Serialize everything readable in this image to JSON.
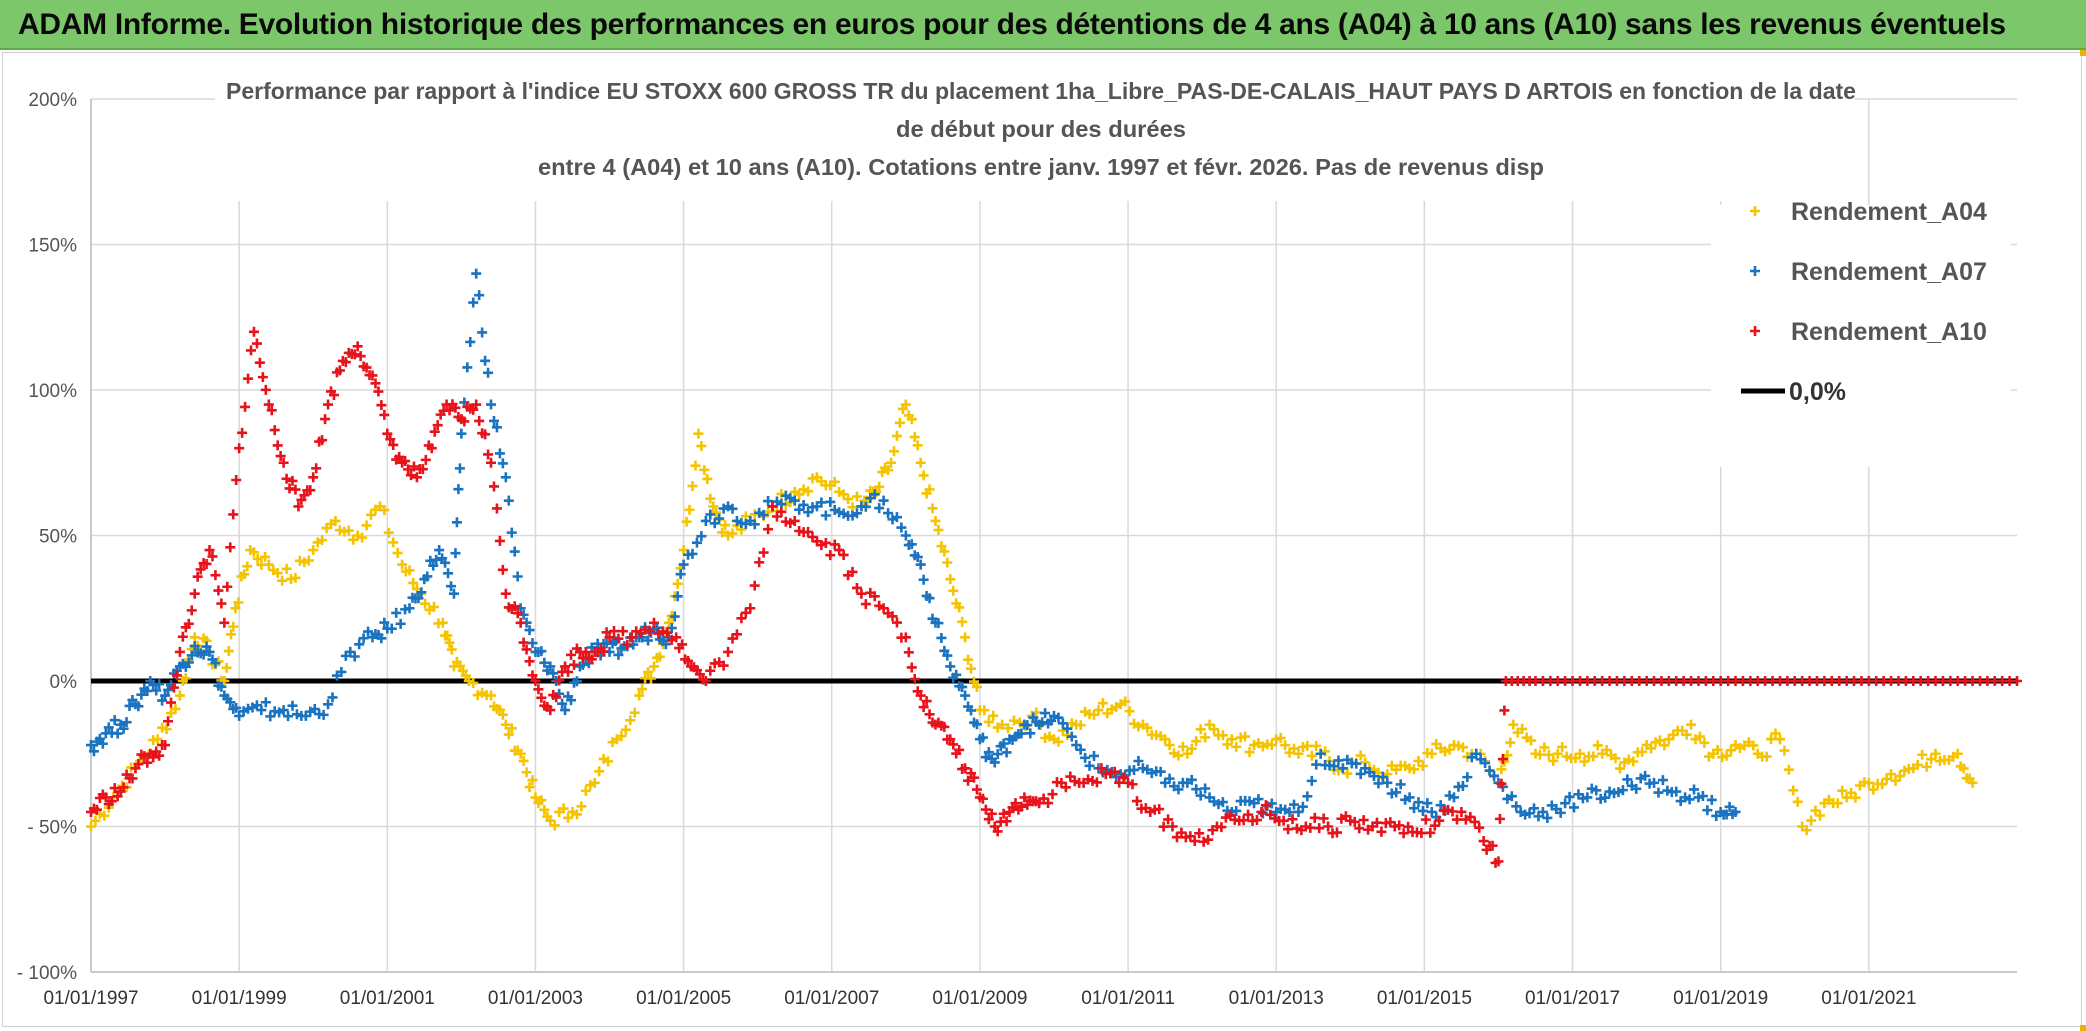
{
  "header": {
    "banner_title": "ADAM Informe. Evolution historique des performances en euros pour des détentions de 4 ans (A04) à 10 ans (A10) sans les revenus éventuels"
  },
  "chart_data": {
    "type": "scatter",
    "title_lines": [
      "Performance par rapport à l'indice EU STOXX 600 GROSS TR  du placement 1ha_Libre_PAS-DE-CALAIS_HAUT PAYS D ARTOIS en fonction de la date",
      "de début pour des durées",
      "entre 4 (A04) et 10 ans (A10). Cotations entre janv. 1997 et févr. 2026. Pas de revenus disp"
    ],
    "xlabel": "",
    "ylabel": "",
    "x_ticks": [
      "01/01/1997",
      "01/01/1999",
      "01/01/2001",
      "01/01/2003",
      "01/01/2005",
      "01/01/2007",
      "01/01/2009",
      "01/01/2011",
      "01/01/2013",
      "01/01/2015",
      "01/01/2017",
      "01/01/2019",
      "01/01/2021"
    ],
    "x_range": [
      1997.0,
      2023.0
    ],
    "y_ticks": [
      "200%",
      "150%",
      "100%",
      "50%",
      "0%",
      "- 50%",
      "- 100%"
    ],
    "y_tick_values": [
      200,
      150,
      100,
      50,
      0,
      -50,
      -100
    ],
    "ylim": [
      -100,
      200
    ],
    "grid": true,
    "legend_position": "top-right",
    "series": [
      {
        "name": "Rendement_A04",
        "color": "#f5c400",
        "marker": "+",
        "x": [
          1997.0,
          1997.3,
          1997.6,
          1997.9,
          1998.2,
          1998.4,
          1998.6,
          1998.8,
          1998.95,
          1999.15,
          1999.4,
          1999.7,
          2000.0,
          2000.3,
          2000.6,
          2000.9,
          2001.2,
          2001.45,
          2001.75,
          2001.9,
          2002.1,
          2002.4,
          2002.6,
          2002.8,
          2003.0,
          2003.2,
          2003.5,
          2003.8,
          2004.1,
          2004.4,
          2004.6,
          2004.8,
          2005.0,
          2005.2,
          2005.4,
          2005.6,
          2005.9,
          2006.2,
          2006.5,
          2006.8,
          2007.1,
          2007.4,
          2007.6,
          2007.8,
          2008.0,
          2008.2,
          2008.4,
          2008.6,
          2008.8,
          2009.0,
          2009.3,
          2009.7,
          2010.0,
          2010.3,
          2010.6,
          2010.9,
          2011.2,
          2011.5,
          2011.8,
          2012.1,
          2012.4,
          2012.7,
          2013.0,
          2013.3,
          2013.6,
          2013.9,
          2014.2,
          2014.5,
          2014.8,
          2015.1,
          2015.4,
          2015.7,
          2016.0,
          2016.2,
          2016.5,
          2016.8,
          2017.1,
          2017.4,
          2017.7,
          2018.0,
          2018.3,
          2018.6,
          2018.9,
          2019.2,
          2019.5,
          2019.8,
          2020.1,
          2020.4,
          2020.7,
          2021.0,
          2021.3,
          2021.6,
          2021.9,
          2022.2,
          2022.4
        ],
        "y": [
          -50,
          -40,
          -30,
          -20,
          -5,
          15,
          10,
          0,
          25,
          45,
          40,
          35,
          45,
          55,
          50,
          60,
          40,
          30,
          20,
          5,
          0,
          -5,
          -15,
          -25,
          -40,
          -48,
          -45,
          -35,
          -20,
          -5,
          5,
          20,
          45,
          85,
          60,
          50,
          55,
          60,
          65,
          70,
          65,
          60,
          65,
          75,
          95,
          75,
          55,
          35,
          15,
          -10,
          -15,
          -12,
          -20,
          -15,
          -10,
          -8,
          -15,
          -20,
          -25,
          -15,
          -20,
          -22,
          -20,
          -25,
          -25,
          -30,
          -28,
          -32,
          -30,
          -25,
          -22,
          -25,
          -35,
          -15,
          -25,
          -25,
          -25,
          -25,
          -28,
          -22,
          -20,
          -15,
          -25,
          -22,
          -25,
          -20,
          -50,
          -42,
          -40,
          -35,
          -32,
          -30,
          -25,
          -25,
          -35
        ]
      },
      {
        "name": "Rendement_A07",
        "color": "#1a73c0",
        "marker": "+",
        "x": [
          1997.0,
          1997.2,
          1997.4,
          1997.6,
          1997.8,
          1998.0,
          1998.2,
          1998.4,
          1998.6,
          1998.8,
          1999.0,
          1999.3,
          1999.6,
          1999.9,
          2000.2,
          2000.5,
          2000.8,
          2001.0,
          2001.3,
          2001.5,
          2001.7,
          2001.9,
          2002.0,
          2002.2,
          2002.4,
          2002.6,
          2002.8,
          2003.0,
          2003.2,
          2003.4,
          2003.6,
          2003.8,
          2004.0,
          2004.2,
          2004.4,
          2004.6,
          2004.8,
          2005.0,
          2005.3,
          2005.6,
          2005.9,
          2006.2,
          2006.5,
          2006.8,
          2007.1,
          2007.4,
          2007.7,
          2008.0,
          2008.2,
          2008.4,
          2008.6,
          2008.8,
          2009.0,
          2009.2,
          2009.4,
          2009.6,
          2009.8,
          2010.0,
          2010.3,
          2010.6,
          2010.9,
          2011.2,
          2011.5,
          2011.8,
          2012.1,
          2012.4,
          2012.7,
          2013.0,
          2013.3,
          2013.6,
          2013.9,
          2014.2,
          2014.5,
          2014.8,
          2015.1,
          2015.4,
          2015.7,
          2016.0,
          2016.3,
          2016.6,
          2016.9,
          2017.2,
          2017.5,
          2017.8,
          2018.1,
          2018.4,
          2018.7,
          2019.0,
          2019.2
        ],
        "y": [
          -22,
          -18,
          -15,
          -8,
          0,
          -5,
          5,
          12,
          10,
          -5,
          -12,
          -10,
          -10,
          -12,
          -8,
          10,
          15,
          18,
          25,
          35,
          45,
          30,
          85,
          140,
          95,
          70,
          25,
          10,
          5,
          -10,
          5,
          10,
          10,
          12,
          15,
          18,
          15,
          40,
          55,
          60,
          55,
          60,
          62,
          60,
          58,
          60,
          62,
          50,
          40,
          20,
          5,
          -5,
          -20,
          -28,
          -20,
          -15,
          -15,
          -12,
          -22,
          -30,
          -32,
          -30,
          -35,
          -35,
          -40,
          -45,
          -42,
          -45,
          -45,
          -25,
          -30,
          -30,
          -35,
          -40,
          -45,
          -40,
          -25,
          -35,
          -45,
          -45,
          -42,
          -40,
          -38,
          -36,
          -35,
          -38,
          -40,
          -45,
          -45
        ]
      },
      {
        "name": "Rendement_A10",
        "color": "#e8121a",
        "marker": "+",
        "x": [
          1997.0,
          1997.2,
          1997.4,
          1997.6,
          1997.8,
          1998.0,
          1998.2,
          1998.4,
          1998.6,
          1998.8,
          1999.0,
          1999.2,
          1999.4,
          1999.6,
          1999.8,
          2000.0,
          2000.2,
          2000.4,
          2000.6,
          2000.8,
          2001.0,
          2001.2,
          2001.4,
          2001.6,
          2001.8,
          2002.0,
          2002.2,
          2002.4,
          2002.6,
          2002.8,
          2003.0,
          2003.2,
          2003.4,
          2003.6,
          2003.8,
          2004.0,
          2004.3,
          2004.6,
          2004.9,
          2005.1,
          2005.3,
          2005.6,
          2005.9,
          2006.2,
          2006.5,
          2006.8,
          2007.1,
          2007.4,
          2007.7,
          2008.0,
          2008.2,
          2008.4,
          2008.6,
          2008.8,
          2009.0,
          2009.2,
          2009.4,
          2009.6,
          2009.8,
          2010.1,
          2010.4,
          2010.7,
          2011.0,
          2011.3,
          2011.6,
          2011.9,
          2012.2,
          2012.5,
          2012.8,
          2013.1,
          2013.4,
          2013.7,
          2014.0,
          2014.3,
          2014.6,
          2014.9,
          2015.2,
          2015.5,
          2015.8,
          2016.0,
          2016.1,
          2016.5,
          2017.0,
          2017.5,
          2018.0,
          2018.5,
          2019.0,
          2019.5,
          2020.0,
          2020.5,
          2021.0,
          2021.5,
          2022.0,
          2022.5,
          2023.0
        ],
        "y": [
          -45,
          -40,
          -38,
          -30,
          -25,
          -22,
          10,
          30,
          45,
          20,
          80,
          120,
          95,
          75,
          60,
          70,
          95,
          110,
          115,
          105,
          85,
          75,
          70,
          80,
          95,
          90,
          95,
          75,
          30,
          20,
          0,
          -10,
          5,
          10,
          10,
          15,
          15,
          20,
          15,
          5,
          0,
          10,
          25,
          60,
          55,
          48,
          45,
          30,
          25,
          15,
          -5,
          -15,
          -20,
          -30,
          -40,
          -50,
          -45,
          -40,
          -42,
          -35,
          -35,
          -32,
          -35,
          -45,
          -50,
          -55,
          -50,
          -48,
          -45,
          -48,
          -50,
          -50,
          -48,
          -50,
          -50,
          -52,
          -48,
          -45,
          -55,
          -62,
          0,
          0,
          0,
          0,
          0,
          0,
          0,
          0,
          0,
          0,
          0,
          0,
          0,
          0,
          0
        ]
      }
    ],
    "reference_line": {
      "name": "0,0%",
      "value": 0,
      "color": "#000000"
    }
  }
}
